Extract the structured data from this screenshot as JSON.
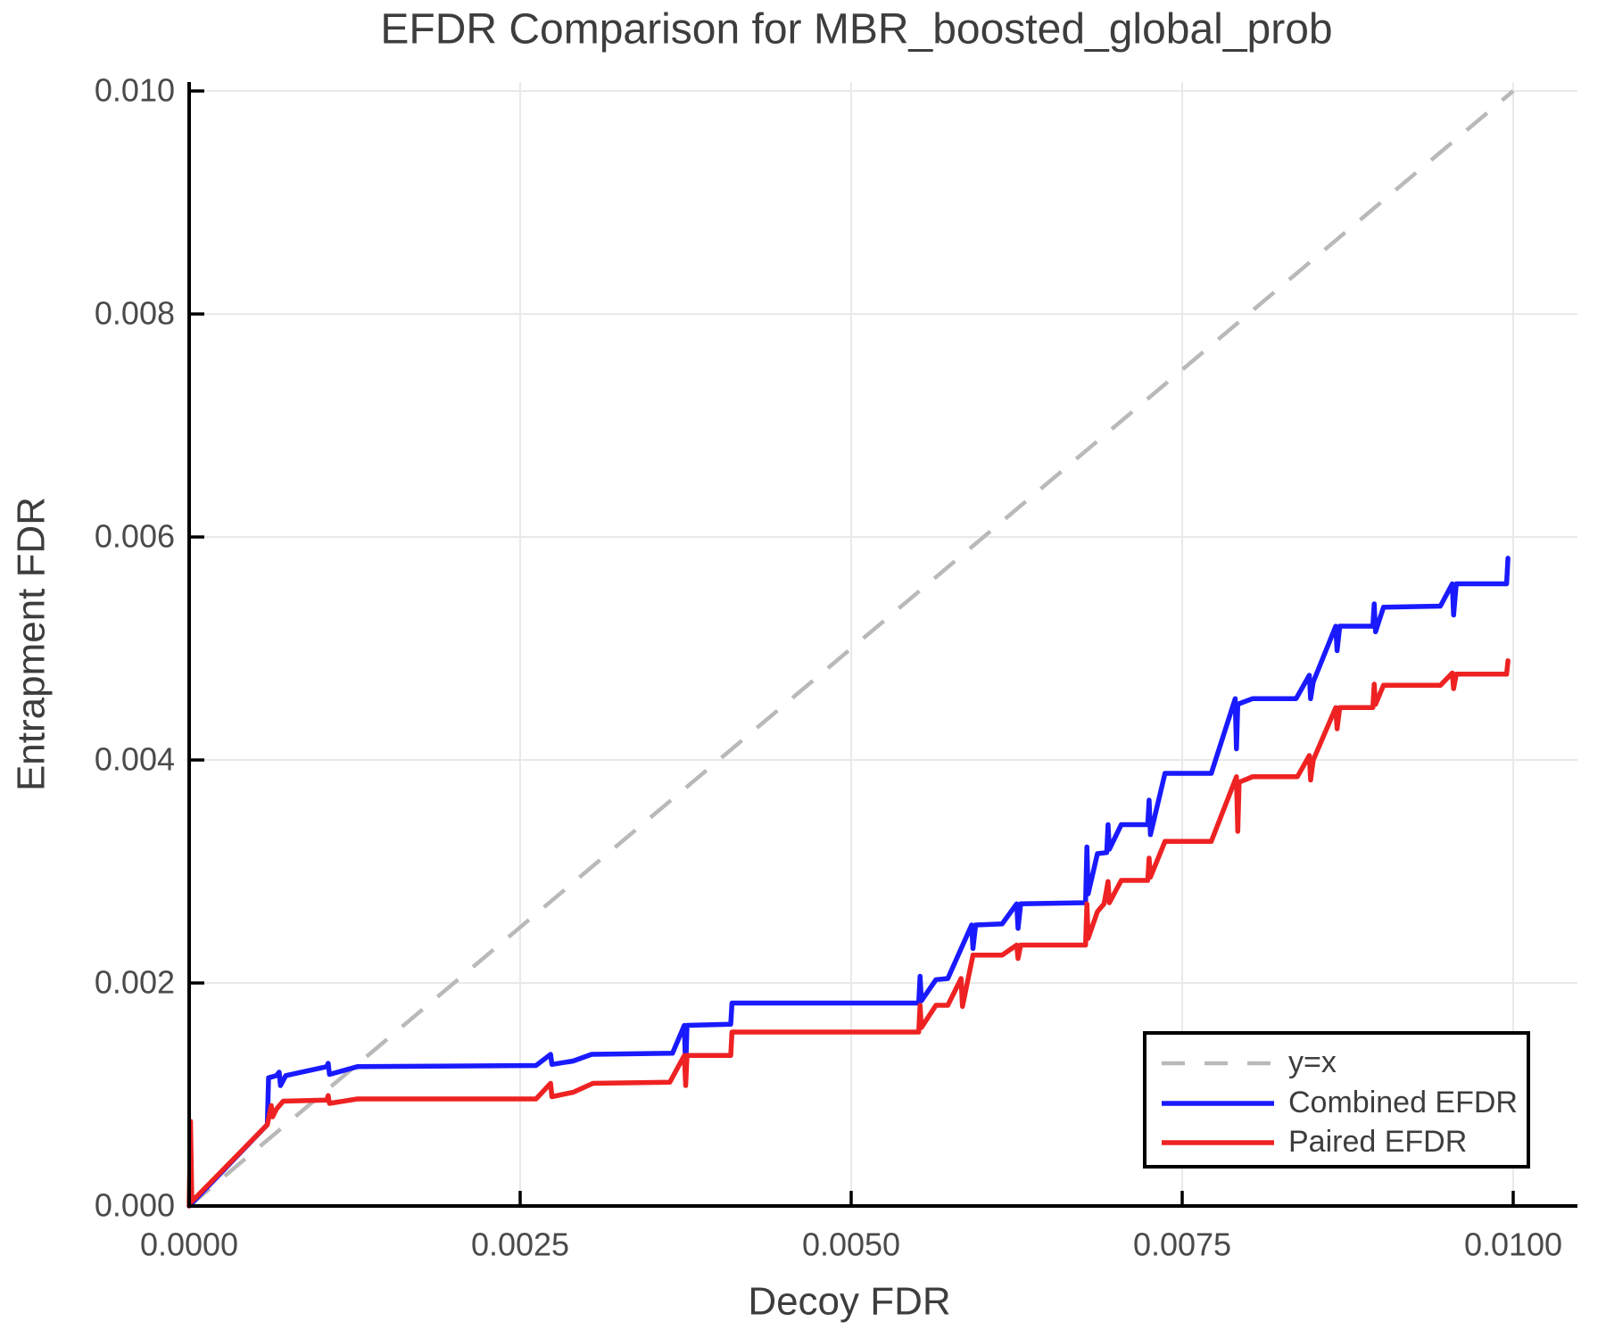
{
  "title": "EFDR Comparison for MBR_boosted_global_prob",
  "colors": {
    "background": "#ffffff",
    "title_text": "#3d3d3d",
    "tick_text": "#4a4a4a",
    "spine": "#000000",
    "grid": "#e9e9e9",
    "identity": "#b9b9b9",
    "combined": "#1a1aff",
    "paired": "#ee2222",
    "legend_border": "#000000",
    "legend_bg": "#ffffff"
  },
  "chart_data": {
    "type": "line",
    "title": "EFDR Comparison for MBR_boosted_global_prob",
    "xlabel": "Decoy FDR",
    "ylabel": "Entrapment FDR",
    "xlim": [
      0.0,
      0.01
    ],
    "ylim": [
      0.0,
      0.01
    ],
    "grid": true,
    "xticks": {
      "values": [
        0.0,
        0.0025,
        0.005,
        0.0075,
        0.01
      ],
      "labels": [
        "0.0000",
        "0.0025",
        "0.0050",
        "0.0075",
        "0.0100"
      ]
    },
    "yticks": {
      "values": [
        0.0,
        0.002,
        0.004,
        0.006,
        0.008,
        0.01
      ],
      "labels": [
        "0.000",
        "0.002",
        "0.004",
        "0.006",
        "0.008",
        "0.010"
      ]
    },
    "legend": {
      "position": "lower right",
      "entries": [
        {
          "label": "y=x",
          "color": "#b9b9b9",
          "dashed": true
        },
        {
          "label": "Combined EFDR",
          "color": "#1a1aff",
          "dashed": false
        },
        {
          "label": "Paired EFDR",
          "color": "#ee2222",
          "dashed": false
        }
      ]
    },
    "series": [
      {
        "name": "y=x",
        "style": "dashed",
        "color": "#b9b9b9",
        "points": [
          [
            0.0,
            0.0
          ],
          [
            0.01,
            0.01
          ]
        ]
      },
      {
        "name": "Combined EFDR",
        "style": "solid",
        "color": "#1a1aff",
        "points": [
          [
            0.0,
            0.0
          ],
          [
            0.00059,
            0.00073
          ],
          [
            0.0006,
            0.00115
          ],
          [
            0.00066,
            0.00117
          ],
          [
            0.00068,
            0.0012
          ],
          [
            0.00069,
            0.00108
          ],
          [
            0.00073,
            0.00117
          ],
          [
            0.00104,
            0.00125
          ],
          [
            0.00105,
            0.00128
          ],
          [
            0.00106,
            0.00118
          ],
          [
            0.00127,
            0.00125
          ],
          [
            0.00262,
            0.00126
          ],
          [
            0.00273,
            0.00136
          ],
          [
            0.00274,
            0.00127
          ],
          [
            0.0029,
            0.0013
          ],
          [
            0.00304,
            0.00136
          ],
          [
            0.00365,
            0.00137
          ],
          [
            0.00374,
            0.00162
          ],
          [
            0.00375,
            0.00121
          ],
          [
            0.00376,
            0.00162
          ],
          [
            0.00409,
            0.00163
          ],
          [
            0.0041,
            0.00182
          ],
          [
            0.00551,
            0.00182
          ],
          [
            0.00552,
            0.00206
          ],
          [
            0.00553,
            0.00184
          ],
          [
            0.00564,
            0.00203
          ],
          [
            0.00573,
            0.00204
          ],
          [
            0.00591,
            0.00252
          ],
          [
            0.00592,
            0.00231
          ],
          [
            0.00594,
            0.00252
          ],
          [
            0.00614,
            0.00253
          ],
          [
            0.00625,
            0.00271
          ],
          [
            0.00626,
            0.00249
          ],
          [
            0.00628,
            0.00271
          ],
          [
            0.00677,
            0.00272
          ],
          [
            0.00678,
            0.00322
          ],
          [
            0.00679,
            0.0028
          ],
          [
            0.00686,
            0.00316
          ],
          [
            0.00693,
            0.00317
          ],
          [
            0.00694,
            0.00342
          ],
          [
            0.00695,
            0.0032
          ],
          [
            0.00704,
            0.00342
          ],
          [
            0.00724,
            0.00342
          ],
          [
            0.00725,
            0.00364
          ],
          [
            0.00726,
            0.00333
          ],
          [
            0.00737,
            0.00388
          ],
          [
            0.00772,
            0.00388
          ],
          [
            0.0079,
            0.00455
          ],
          [
            0.00791,
            0.0041
          ],
          [
            0.00792,
            0.0045
          ],
          [
            0.00803,
            0.00455
          ],
          [
            0.00836,
            0.00455
          ],
          [
            0.00846,
            0.00476
          ],
          [
            0.00847,
            0.00455
          ],
          [
            0.00849,
            0.0047
          ],
          [
            0.00866,
            0.0052
          ],
          [
            0.00867,
            0.00498
          ],
          [
            0.00869,
            0.0052
          ],
          [
            0.00894,
            0.0052
          ],
          [
            0.00895,
            0.0054
          ],
          [
            0.00896,
            0.00515
          ],
          [
            0.00902,
            0.00537
          ],
          [
            0.00945,
            0.00538
          ],
          [
            0.00954,
            0.00558
          ],
          [
            0.00955,
            0.0053
          ],
          [
            0.00957,
            0.00558
          ],
          [
            0.00995,
            0.00558
          ],
          [
            0.00996,
            0.00581
          ]
        ]
      },
      {
        "name": "Paired EFDR",
        "style": "solid",
        "color": "#ee2222",
        "points": [
          [
            0.0,
            0.0
          ],
          [
            1e-05,
            0.00076
          ],
          [
            2e-05,
            4e-05
          ],
          [
            0.00059,
            0.00073
          ],
          [
            0.00062,
            0.0009
          ],
          [
            0.00063,
            0.0008
          ],
          [
            0.00066,
            0.00087
          ],
          [
            0.00071,
            0.00094
          ],
          [
            0.00104,
            0.00095
          ],
          [
            0.00105,
            0.00099
          ],
          [
            0.00106,
            0.00092
          ],
          [
            0.00127,
            0.00096
          ],
          [
            0.00262,
            0.00096
          ],
          [
            0.00273,
            0.0011
          ],
          [
            0.00274,
            0.00098
          ],
          [
            0.0029,
            0.00102
          ],
          [
            0.00305,
            0.0011
          ],
          [
            0.00363,
            0.00111
          ],
          [
            0.00374,
            0.00135
          ],
          [
            0.00375,
            0.00108
          ],
          [
            0.00376,
            0.00135
          ],
          [
            0.00409,
            0.00135
          ],
          [
            0.0041,
            0.00156
          ],
          [
            0.00551,
            0.00156
          ],
          [
            0.00552,
            0.0018
          ],
          [
            0.00553,
            0.0016
          ],
          [
            0.00564,
            0.0018
          ],
          [
            0.00573,
            0.0018
          ],
          [
            0.00583,
            0.00204
          ],
          [
            0.00584,
            0.00179
          ],
          [
            0.00592,
            0.00225
          ],
          [
            0.00614,
            0.00225
          ],
          [
            0.00625,
            0.00234
          ],
          [
            0.00626,
            0.00222
          ],
          [
            0.00628,
            0.00234
          ],
          [
            0.00677,
            0.00234
          ],
          [
            0.00678,
            0.00271
          ],
          [
            0.00679,
            0.0024
          ],
          [
            0.00686,
            0.00264
          ],
          [
            0.00691,
            0.00271
          ],
          [
            0.00694,
            0.00291
          ],
          [
            0.00695,
            0.00272
          ],
          [
            0.00704,
            0.00292
          ],
          [
            0.00724,
            0.00292
          ],
          [
            0.00725,
            0.00312
          ],
          [
            0.00726,
            0.00295
          ],
          [
            0.00737,
            0.00327
          ],
          [
            0.00772,
            0.00327
          ],
          [
            0.00791,
            0.00385
          ],
          [
            0.00792,
            0.00336
          ],
          [
            0.00793,
            0.0038
          ],
          [
            0.00803,
            0.00385
          ],
          [
            0.00837,
            0.00385
          ],
          [
            0.00846,
            0.00404
          ],
          [
            0.00847,
            0.00382
          ],
          [
            0.00849,
            0.004
          ],
          [
            0.00866,
            0.00447
          ],
          [
            0.00867,
            0.00428
          ],
          [
            0.00869,
            0.00447
          ],
          [
            0.00894,
            0.00447
          ],
          [
            0.00895,
            0.00468
          ],
          [
            0.00896,
            0.0045
          ],
          [
            0.00902,
            0.00467
          ],
          [
            0.00945,
            0.00467
          ],
          [
            0.00954,
            0.00478
          ],
          [
            0.00955,
            0.00464
          ],
          [
            0.00957,
            0.00477
          ],
          [
            0.00995,
            0.00477
          ],
          [
            0.00996,
            0.00489
          ]
        ]
      }
    ]
  }
}
